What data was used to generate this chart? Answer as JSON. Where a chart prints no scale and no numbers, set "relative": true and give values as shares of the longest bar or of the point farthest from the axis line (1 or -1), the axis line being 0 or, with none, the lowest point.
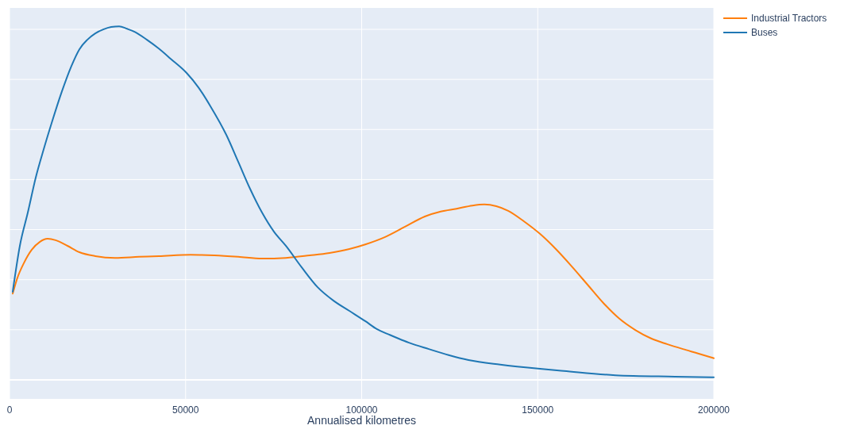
{
  "chart_data": {
    "type": "line",
    "relative": true,
    "xlabel": "Annualised kilometres",
    "xlim": [
      0,
      200000
    ],
    "xticks": [
      0,
      50000,
      100000,
      150000,
      200000
    ],
    "grid": true,
    "legend": "top right",
    "series": [
      {
        "name": "Industrial Tractors",
        "color": "#ff7f0e",
        "x": [
          900,
          2260,
          4060,
          6310,
          8570,
          10820,
          13080,
          16460,
          19840,
          24350,
          29990,
          36760,
          42400,
          51410,
          58180,
          64940,
          71710,
          78470,
          85240,
          90880,
          96510,
          101020,
          106660,
          112300,
          117940,
          122450,
          126960,
          131470,
          134850,
          138230,
          141620,
          146130,
          150630,
          155140,
          159650,
          164160,
          168670,
          173180,
          177690,
          182200,
          186710,
          191220,
          195730,
          200000
        ],
        "values": [
          0.244,
          0.289,
          0.33,
          0.368,
          0.39,
          0.399,
          0.395,
          0.379,
          0.361,
          0.35,
          0.345,
          0.348,
          0.35,
          0.354,
          0.352,
          0.348,
          0.343,
          0.345,
          0.352,
          0.359,
          0.37,
          0.383,
          0.404,
          0.433,
          0.462,
          0.476,
          0.484,
          0.493,
          0.496,
          0.491,
          0.478,
          0.448,
          0.413,
          0.37,
          0.321,
          0.269,
          0.217,
          0.173,
          0.141,
          0.117,
          0.101,
          0.087,
          0.074,
          0.061
        ]
      },
      {
        "name": "Buses",
        "color": "#1f77b4",
        "x": [
          900,
          2930,
          5190,
          7440,
          9700,
          11950,
          14880,
          17590,
          19840,
          22100,
          24350,
          26610,
          28860,
          31120,
          33370,
          35630,
          39010,
          42400,
          45780,
          50290,
          53670,
          57050,
          61560,
          64940,
          68330,
          71710,
          75090,
          78470,
          82980,
          87490,
          92000,
          96510,
          101020,
          104400,
          107790,
          113430,
          119060,
          124700,
          130340,
          139360,
          150630,
          157400,
          172060,
          188970,
          200000
        ],
        "values": [
          0.249,
          0.379,
          0.473,
          0.572,
          0.652,
          0.726,
          0.816,
          0.888,
          0.935,
          0.962,
          0.98,
          0.991,
          0.998,
          1,
          0.993,
          0.984,
          0.962,
          0.937,
          0.908,
          0.868,
          0.827,
          0.774,
          0.693,
          0.617,
          0.54,
          0.473,
          0.419,
          0.379,
          0.318,
          0.262,
          0.224,
          0.195,
          0.166,
          0.143,
          0.128,
          0.105,
          0.087,
          0.07,
          0.056,
          0.043,
          0.031,
          0.025,
          0.013,
          0.009,
          0.007
        ]
      }
    ]
  }
}
